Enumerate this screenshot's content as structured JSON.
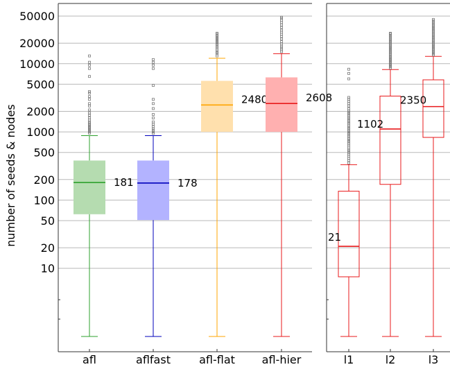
{
  "chart_data": [
    {
      "type": "box",
      "title": "",
      "xlabel": "",
      "ylabel": "number of seeds & nodes",
      "yscale": "log",
      "ylim": [
        1,
        70000
      ],
      "grid": "horizontal",
      "yticks": [
        10,
        20,
        50,
        100,
        200,
        500,
        1000,
        2000,
        5000,
        10000,
        20000,
        50000
      ],
      "ytick_labels": [
        "10",
        "20",
        "50",
        "100",
        "200",
        "500",
        "1000",
        "2000",
        "5000",
        "10000",
        "20000",
        "50000"
      ],
      "categories": [
        "afl",
        "aflfast",
        "afl-flat",
        "afl-hier"
      ],
      "boxes": [
        {
          "label": "afl",
          "median": 181,
          "median_label": "181",
          "q1": 62,
          "q3": 380,
          "whisker_low": 1,
          "whisker_high": 880,
          "color": "#2ca02c",
          "fill": "#b5dcb0",
          "filled": true,
          "outliers": [
            960,
            1000,
            1050,
            1100,
            1150,
            1200,
            1250,
            1300,
            1350,
            1400,
            1500,
            1600,
            1750,
            1900,
            2100,
            2400,
            2600,
            3000,
            3300,
            3700,
            3900,
            6500,
            8500,
            9500,
            10500,
            13000
          ]
        },
        {
          "label": "aflfast",
          "median": 178,
          "median_label": "178",
          "q1": 51,
          "q3": 380,
          "whisker_low": 1,
          "whisker_high": 880,
          "color": "#0000bb",
          "fill": "#b3b3ff",
          "filled": true,
          "outliers": [
            950,
            1000,
            1060,
            1120,
            1200,
            1300,
            1400,
            1600,
            1800,
            2200,
            2600,
            3000,
            4800,
            8500,
            9500,
            10500,
            11500
          ]
        },
        {
          "label": "afl-flat",
          "median": 2480,
          "median_label": "2480",
          "q1": 1000,
          "q3": 5600,
          "whisker_low": 1,
          "whisker_high": 12000,
          "color": "#ffa500",
          "fill": "#ffe0ad",
          "filled": true,
          "outliers": [
            13000,
            14000,
            14500,
            15000,
            16000,
            17000,
            18000,
            19000,
            20000,
            21000,
            22000,
            23000,
            24000,
            25000,
            26000,
            27000,
            28000
          ]
        },
        {
          "label": "afl-hier",
          "median": 2608,
          "median_label": "2608",
          "q1": 1000,
          "q3": 6300,
          "whisker_low": 1,
          "whisker_high": 14000,
          "color": "#e8191b",
          "fill": "#ffb0b0",
          "filled": true,
          "outliers": [
            15000,
            16000,
            17000,
            18000,
            19500,
            21000,
            23000,
            25000,
            27000,
            29000,
            31000,
            34000,
            37000,
            40000,
            43000,
            46000,
            48000
          ]
        }
      ]
    },
    {
      "type": "box",
      "title": "",
      "xlabel": "",
      "ylabel": "",
      "yscale": "log",
      "ylim": [
        1,
        70000
      ],
      "grid": "horizontal",
      "categories": [
        "l1",
        "l2",
        "l3"
      ],
      "boxes": [
        {
          "label": "l1",
          "median": 21,
          "median_label": "21",
          "q1": 7.5,
          "q3": 135,
          "whisker_low": 1,
          "whisker_high": 330,
          "color": "#e8191b",
          "fill": "none",
          "filled": false,
          "outliers": [
            350,
            380,
            410,
            440,
            470,
            500,
            530,
            560,
            600,
            640,
            680,
            720,
            760,
            800,
            850,
            900,
            950,
            1000,
            1060,
            1120,
            1180,
            1250,
            1330,
            1400,
            1480,
            1560,
            1650,
            1750,
            1850,
            1950,
            2050,
            2200,
            2400,
            2600,
            2800,
            3000,
            3200,
            6000,
            7200,
            8300
          ]
        },
        {
          "label": "l2",
          "median": 1102,
          "median_label": "1102",
          "q1": 170,
          "q3": 3350,
          "whisker_low": 1,
          "whisker_high": 8200,
          "color": "#e8191b",
          "fill": "none",
          "filled": false,
          "outliers": [
            8600,
            9000,
            9400,
            9800,
            10300,
            10800,
            11300,
            11800,
            12400,
            13000,
            13700,
            14400,
            15100,
            15900,
            16700,
            17500,
            18400,
            19300,
            20300,
            21300,
            22400,
            23500,
            24700,
            26000,
            27300,
            28000
          ]
        },
        {
          "label": "l3",
          "median": 2350,
          "median_label": "2350",
          "q1": 830,
          "q3": 5800,
          "whisker_low": 1,
          "whisker_high": 12800,
          "color": "#e8191b",
          "fill": "none",
          "filled": false,
          "outliers": [
            13400,
            14000,
            14700,
            15400,
            16200,
            17000,
            17900,
            18800,
            19800,
            20800,
            21900,
            23000,
            24200,
            25500,
            26800,
            28200,
            29700,
            31200,
            32800,
            34500,
            36300,
            38200,
            40200,
            42300,
            44500
          ]
        }
      ]
    }
  ]
}
